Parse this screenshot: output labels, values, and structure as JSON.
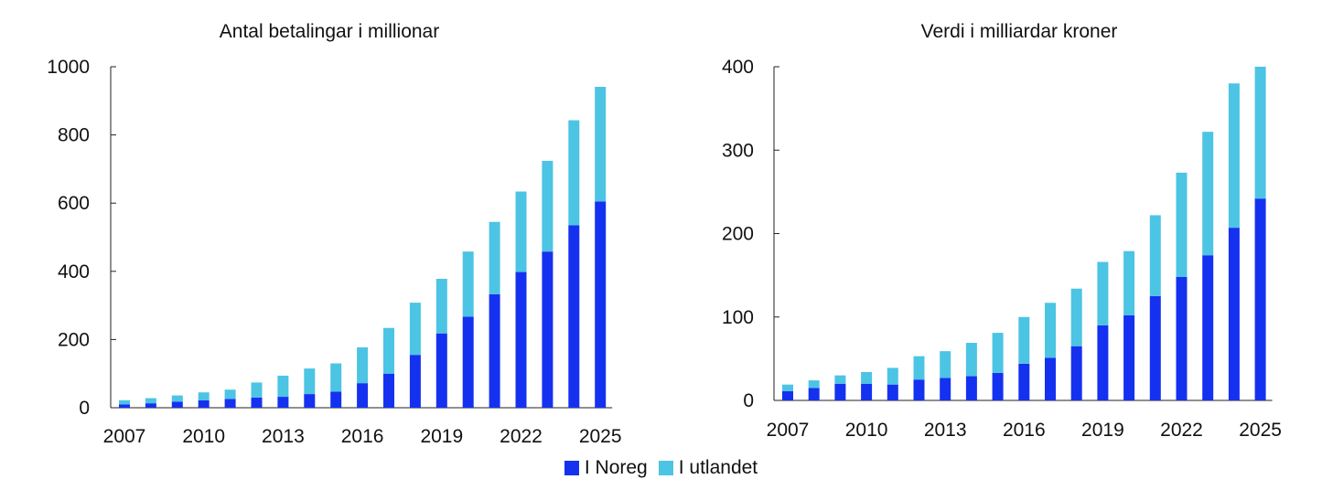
{
  "legend": [
    {
      "label": "I Noreg",
      "color": "#1531f0"
    },
    {
      "label": "I utlandet",
      "color": "#4cc4e4"
    }
  ],
  "chart_data": [
    {
      "type": "bar",
      "stacked": true,
      "title": "Antal betalingar i millionar",
      "categories": [
        2007,
        2008,
        2009,
        2010,
        2011,
        2012,
        2013,
        2014,
        2015,
        2016,
        2017,
        2018,
        2019,
        2020,
        2021,
        2022,
        2023,
        2024,
        2025
      ],
      "x_tick_labels": [
        "2007",
        "2010",
        "2013",
        "2016",
        "2019",
        "2022",
        "2025"
      ],
      "ylim": [
        0,
        1000
      ],
      "y_ticks": [
        0,
        200,
        400,
        600,
        800,
        1000
      ],
      "series": [
        {
          "name": "I Noreg",
          "values": [
            10,
            13,
            18,
            22,
            26,
            30,
            32,
            40,
            47,
            72,
            100,
            155,
            218,
            267,
            333,
            398,
            458,
            535,
            605
          ]
        },
        {
          "name": "I utlandet",
          "values": [
            12,
            15,
            18,
            23,
            27,
            44,
            62,
            75,
            83,
            105,
            134,
            153,
            160,
            191,
            212,
            236,
            266,
            308,
            336
          ]
        }
      ]
    },
    {
      "type": "bar",
      "stacked": true,
      "title": "Verdi i milliardar kroner",
      "categories": [
        2007,
        2008,
        2009,
        2010,
        2011,
        2012,
        2013,
        2014,
        2015,
        2016,
        2017,
        2018,
        2019,
        2020,
        2021,
        2022,
        2023,
        2024,
        2025
      ],
      "x_tick_labels": [
        "2007",
        "2010",
        "2013",
        "2016",
        "2019",
        "2022",
        "2025"
      ],
      "ylim": [
        0,
        400
      ],
      "y_ticks": [
        0,
        100,
        200,
        300,
        400
      ],
      "series": [
        {
          "name": "I Noreg",
          "values": [
            11,
            15,
            20,
            20,
            19,
            25,
            27,
            29,
            33,
            44,
            51,
            65,
            90,
            102,
            125,
            148,
            174,
            207,
            242
          ]
        },
        {
          "name": "I utlandet",
          "values": [
            8,
            9,
            10,
            14,
            20,
            28,
            32,
            40,
            48,
            56,
            66,
            69,
            76,
            77,
            97,
            125,
            148,
            173,
            158
          ]
        }
      ]
    }
  ]
}
